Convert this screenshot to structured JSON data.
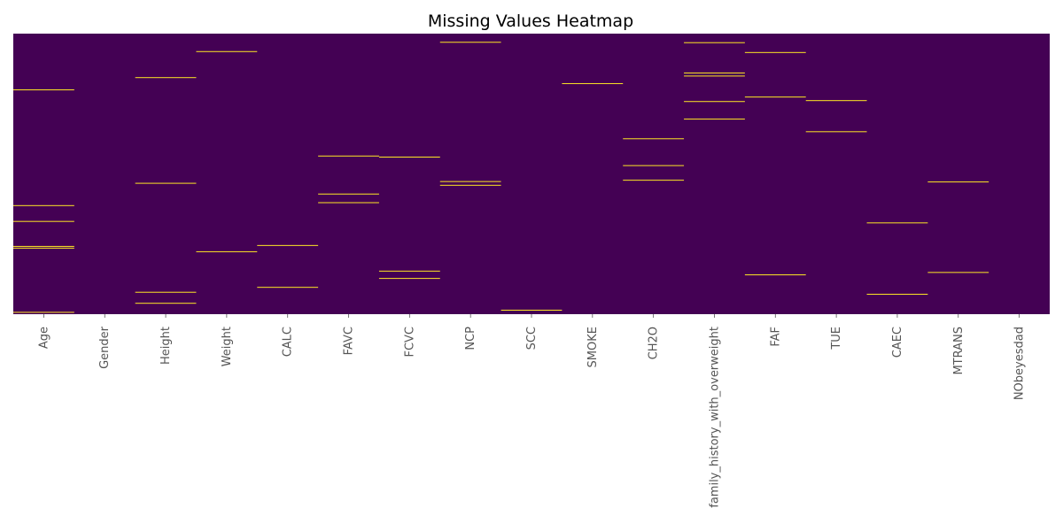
{
  "chart_data": {
    "type": "heatmap",
    "title": "Missing Values Heatmap",
    "xlabel": "",
    "ylabel": "",
    "columns": [
      "Age",
      "Gender",
      "Height",
      "Weight",
      "CALC",
      "FAVC",
      "FCVC",
      "NCP",
      "SCC",
      "SMOKE",
      "CH2O",
      "family_history_with_overweight",
      "FAF",
      "TUE",
      "CAEC",
      "MTRANS",
      "NObeyesdad"
    ],
    "n_rows": 2111,
    "missing_value_color": "#fde725",
    "present_value_color": "#440154",
    "colorbar": false,
    "missing_rows": {
      "Age": [
        423,
        1294,
        1413,
        1601,
        1614,
        2097
      ],
      "Gender": [],
      "Height": [
        331,
        1126,
        1946,
        2029
      ],
      "Weight": [
        135,
        1641
      ],
      "CALC": [
        1594,
        1909
      ],
      "FAVC": [
        921,
        1207,
        1272
      ],
      "FCVC": [
        929,
        1787,
        1842
      ],
      "NCP": [
        65,
        1113,
        1141
      ],
      "SCC": [
        2081
      ],
      "SMOKE": [
        376
      ],
      "CH2O": [
        791,
        993,
        1103
      ],
      "family_history_with_overweight": [
        68,
        296,
        319,
        511,
        643
      ],
      "FAF": [
        142,
        477,
        1815
      ],
      "TUE": [
        504,
        738
      ],
      "CAEC": [
        1424,
        1961
      ],
      "MTRANS": [
        1116,
        1797
      ],
      "NObeyesdad": []
    }
  }
}
